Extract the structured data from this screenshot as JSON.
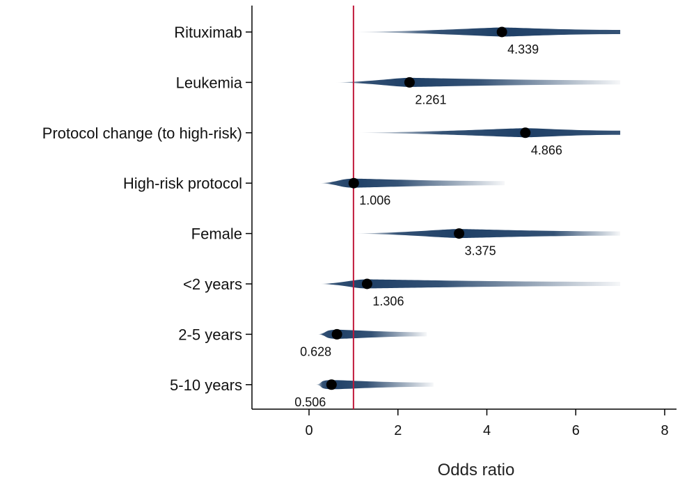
{
  "chart_data": {
    "type": "scatter",
    "subtype": "forest-plot-density",
    "xlabel": "Odds ratio",
    "x_ticks": [
      0,
      2,
      4,
      6,
      8
    ],
    "xlim": [
      -1.2,
      8.2
    ],
    "reference_line": {
      "x": 1,
      "color": "#C0183A"
    },
    "point_color": "#000000",
    "density_color": "#1E3F66",
    "grid": false,
    "legend": "none",
    "categories": [
      "Rituximab",
      "Leukemia",
      "Protocol change (to high-risk)",
      "High-risk protocol",
      "Female",
      "<2 years",
      "2-5 years",
      "5-10 years"
    ],
    "points": [
      {
        "label": "Rituximab",
        "estimate": 4.339,
        "display": "4.339",
        "range": [
          1.0,
          7.0
        ],
        "core": [
          2.8,
          7.0
        ]
      },
      {
        "label": "Leukemia",
        "estimate": 2.261,
        "display": "2.261",
        "range": [
          0.6,
          7.0
        ],
        "core": [
          1.2,
          3.8
        ]
      },
      {
        "label": "Protocol change (to high-risk)",
        "estimate": 4.866,
        "display": "4.866",
        "range": [
          1.0,
          7.0
        ],
        "core": [
          3.0,
          7.0
        ]
      },
      {
        "label": "High-risk protocol",
        "estimate": 1.006,
        "display": "1.006",
        "range": [
          0.25,
          4.4
        ],
        "core": [
          0.5,
          2.0
        ]
      },
      {
        "label": "Female",
        "estimate": 3.375,
        "display": "3.375",
        "range": [
          1.0,
          7.0
        ],
        "core": [
          2.0,
          5.5
        ]
      },
      {
        "label": "<2 years",
        "estimate": 1.306,
        "display": "1.306",
        "range": [
          0.25,
          7.0
        ],
        "core": [
          0.5,
          3.0
        ]
      },
      {
        "label": "2-5 years",
        "estimate": 0.628,
        "display": "0.628",
        "range": [
          0.2,
          2.65
        ],
        "core": [
          0.3,
          1.4
        ]
      },
      {
        "label": "5-10 years",
        "estimate": 0.506,
        "display": "0.506",
        "range": [
          0.15,
          2.8
        ],
        "core": [
          0.3,
          1.3
        ]
      }
    ]
  }
}
